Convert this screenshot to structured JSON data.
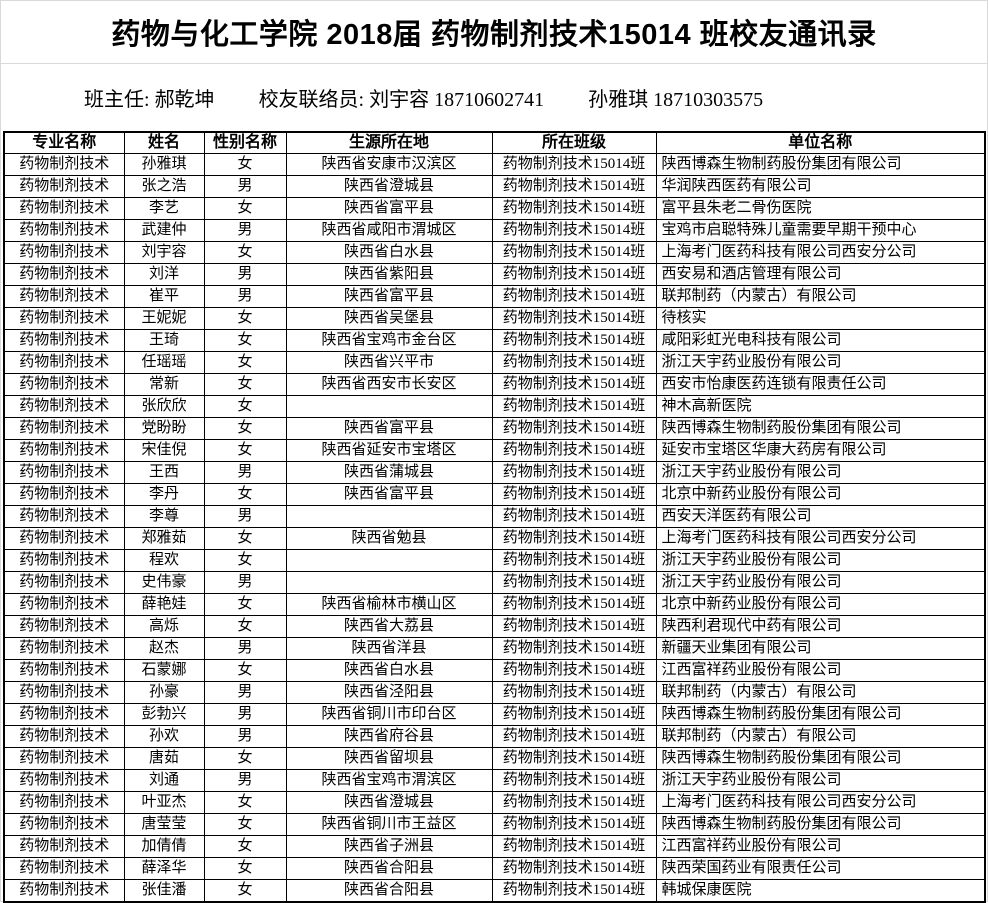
{
  "page": {
    "title": "药物与化工学院 2018届 药物制剂技术15014 班校友通讯录",
    "info_segments": [
      "班主任: 郝乾坤",
      "校友联络员: 刘宇容 18710602741",
      "孙雅琪 18710303575"
    ]
  },
  "colors": {
    "background": "#ffffff",
    "text": "#000000",
    "table_border": "#000000",
    "frame_divider": "#d9d9d9"
  },
  "table": {
    "headers": [
      "专业名称",
      "姓名",
      "性别名称",
      "生源所在地",
      "所在班级",
      "单位名称"
    ],
    "rows": [
      {
        "major": "药物制剂技术",
        "name": "孙雅琪",
        "gender": "女",
        "origin": "陕西省安康市汉滨区",
        "class_name": "药物制剂技术15014班",
        "organization": "陕西博森生物制药股份集团有限公司"
      },
      {
        "major": "药物制剂技术",
        "name": "张之浩",
        "gender": "男",
        "origin": "陕西省澄城县",
        "class_name": "药物制剂技术15014班",
        "organization": "华润陕西医药有限公司"
      },
      {
        "major": "药物制剂技术",
        "name": "李艺",
        "gender": "女",
        "origin": "陕西省富平县",
        "class_name": "药物制剂技术15014班",
        "organization": "富平县朱老二骨伤医院"
      },
      {
        "major": "药物制剂技术",
        "name": "武建仲",
        "gender": "男",
        "origin": "陕西省咸阳市渭城区",
        "class_name": "药物制剂技术15014班",
        "organization": "宝鸡市启聪特殊儿童需要早期干预中心"
      },
      {
        "major": "药物制剂技术",
        "name": "刘宇容",
        "gender": "女",
        "origin": "陕西省白水县",
        "class_name": "药物制剂技术15014班",
        "organization": "上海考门医药科技有限公司西安分公司"
      },
      {
        "major": "药物制剂技术",
        "name": "刘洋",
        "gender": "男",
        "origin": "陕西省紫阳县",
        "class_name": "药物制剂技术15014班",
        "organization": "西安易和酒店管理有限公司"
      },
      {
        "major": "药物制剂技术",
        "name": "崔平",
        "gender": "男",
        "origin": "陕西省富平县",
        "class_name": "药物制剂技术15014班",
        "organization": "联邦制药（内蒙古）有限公司"
      },
      {
        "major": "药物制剂技术",
        "name": "王妮妮",
        "gender": "女",
        "origin": "陕西省吴堡县",
        "class_name": "药物制剂技术15014班",
        "organization": "待核实"
      },
      {
        "major": "药物制剂技术",
        "name": "王琦",
        "gender": "女",
        "origin": "陕西省宝鸡市金台区",
        "class_name": "药物制剂技术15014班",
        "organization": "咸阳彩虹光电科技有限公司"
      },
      {
        "major": "药物制剂技术",
        "name": "任瑶瑶",
        "gender": "女",
        "origin": "陕西省兴平市",
        "class_name": "药物制剂技术15014班",
        "organization": "浙江天宇药业股份有限公司"
      },
      {
        "major": "药物制剂技术",
        "name": "常新",
        "gender": "女",
        "origin": "陕西省西安市长安区",
        "class_name": "药物制剂技术15014班",
        "organization": "西安市怡康医药连锁有限责任公司"
      },
      {
        "major": "药物制剂技术",
        "name": "张欣欣",
        "gender": "女",
        "origin": "",
        "class_name": "药物制剂技术15014班",
        "organization": "神木高新医院"
      },
      {
        "major": "药物制剂技术",
        "name": "党盼盼",
        "gender": "女",
        "origin": "陕西省富平县",
        "class_name": "药物制剂技术15014班",
        "organization": "陕西博森生物制药股份集团有限公司"
      },
      {
        "major": "药物制剂技术",
        "name": "宋佳倪",
        "gender": "女",
        "origin": "陕西省延安市宝塔区",
        "class_name": "药物制剂技术15014班",
        "organization": "延安市宝塔区华康大药房有限公司"
      },
      {
        "major": "药物制剂技术",
        "name": "王西",
        "gender": "男",
        "origin": "陕西省蒲城县",
        "class_name": "药物制剂技术15014班",
        "organization": "浙江天宇药业股份有限公司"
      },
      {
        "major": "药物制剂技术",
        "name": "李丹",
        "gender": "女",
        "origin": "陕西省富平县",
        "class_name": "药物制剂技术15014班",
        "organization": "北京中新药业股份有限公司"
      },
      {
        "major": "药物制剂技术",
        "name": "李尊",
        "gender": "男",
        "origin": "",
        "class_name": "药物制剂技术15014班",
        "organization": "西安天洋医药有限公司"
      },
      {
        "major": "药物制剂技术",
        "name": "郑雅茹",
        "gender": "女",
        "origin": "陕西省勉县",
        "class_name": "药物制剂技术15014班",
        "organization": "上海考门医药科技有限公司西安分公司"
      },
      {
        "major": "药物制剂技术",
        "name": "程欢",
        "gender": "女",
        "origin": "",
        "class_name": "药物制剂技术15014班",
        "organization": "浙江天宇药业股份有限公司"
      },
      {
        "major": "药物制剂技术",
        "name": "史伟豪",
        "gender": "男",
        "origin": "",
        "class_name": "药物制剂技术15014班",
        "organization": "浙江天宇药业股份有限公司"
      },
      {
        "major": "药物制剂技术",
        "name": "薛艳娃",
        "gender": "女",
        "origin": "陕西省榆林市横山区",
        "class_name": "药物制剂技术15014班",
        "organization": "北京中新药业股份有限公司"
      },
      {
        "major": "药物制剂技术",
        "name": "高烁",
        "gender": "女",
        "origin": "陕西省大荔县",
        "class_name": "药物制剂技术15014班",
        "organization": "陕西利君现代中药有限公司"
      },
      {
        "major": "药物制剂技术",
        "name": "赵杰",
        "gender": "男",
        "origin": "陕西省洋县",
        "class_name": "药物制剂技术15014班",
        "organization": "新疆天业集团有限公司"
      },
      {
        "major": "药物制剂技术",
        "name": "石蒙娜",
        "gender": "女",
        "origin": "陕西省白水县",
        "class_name": "药物制剂技术15014班",
        "organization": "江西富祥药业股份有限公司"
      },
      {
        "major": "药物制剂技术",
        "name": "孙豪",
        "gender": "男",
        "origin": "陕西省泾阳县",
        "class_name": "药物制剂技术15014班",
        "organization": "联邦制药（内蒙古）有限公司"
      },
      {
        "major": "药物制剂技术",
        "name": "彭勃兴",
        "gender": "男",
        "origin": "陕西省铜川市印台区",
        "class_name": "药物制剂技术15014班",
        "organization": "陕西博森生物制药股份集团有限公司"
      },
      {
        "major": "药物制剂技术",
        "name": "孙欢",
        "gender": "男",
        "origin": "陕西省府谷县",
        "class_name": "药物制剂技术15014班",
        "organization": "联邦制药（内蒙古）有限公司"
      },
      {
        "major": "药物制剂技术",
        "name": "唐茹",
        "gender": "女",
        "origin": "陕西省留坝县",
        "class_name": "药物制剂技术15014班",
        "organization": "陕西博森生物制药股份集团有限公司"
      },
      {
        "major": "药物制剂技术",
        "name": "刘通",
        "gender": "男",
        "origin": "陕西省宝鸡市渭滨区",
        "class_name": "药物制剂技术15014班",
        "organization": "浙江天宇药业股份有限公司"
      },
      {
        "major": "药物制剂技术",
        "name": "叶亚杰",
        "gender": "女",
        "origin": "陕西省澄城县",
        "class_name": "药物制剂技术15014班",
        "organization": "上海考门医药科技有限公司西安分公司"
      },
      {
        "major": "药物制剂技术",
        "name": "唐莹莹",
        "gender": "女",
        "origin": "陕西省铜川市王益区",
        "class_name": "药物制剂技术15014班",
        "organization": "陕西博森生物制药股份集团有限公司"
      },
      {
        "major": "药物制剂技术",
        "name": "加倩倩",
        "gender": "女",
        "origin": "陕西省子洲县",
        "class_name": "药物制剂技术15014班",
        "organization": "江西富祥药业股份有限公司"
      },
      {
        "major": "药物制剂技术",
        "name": "薛泽华",
        "gender": "女",
        "origin": "陕西省合阳县",
        "class_name": "药物制剂技术15014班",
        "organization": "陕西荣国药业有限责任公司"
      },
      {
        "major": "药物制剂技术",
        "name": "张佳潘",
        "gender": "女",
        "origin": "陕西省合阳县",
        "class_name": "药物制剂技术15014班",
        "organization": "韩城保康医院"
      }
    ]
  }
}
